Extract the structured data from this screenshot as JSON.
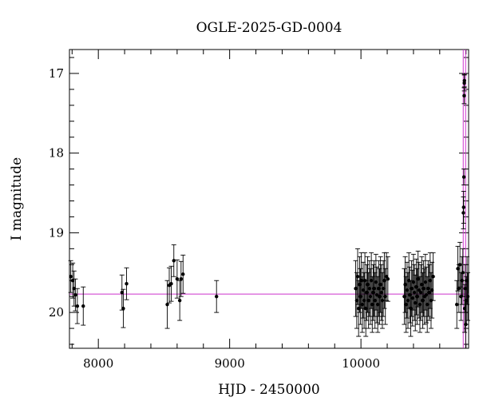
{
  "chart_data": {
    "type": "scatter",
    "title": "OGLE-2025-GD-0004",
    "xlabel": "HJD - 2450000",
    "ylabel": "I magnitude",
    "xlim": [
      7780,
      10820
    ],
    "ylim": [
      16.7,
      20.45
    ],
    "y_inverted": true,
    "x_ticks": [
      8000,
      9000,
      10000
    ],
    "y_ticks": [
      17,
      18,
      19,
      20
    ],
    "baseline_magnitude": 19.77,
    "peak_time": 10788,
    "model_color": "#cc33cc",
    "point_color": "#000000",
    "series": [
      {
        "points": [
          [
            7790,
            19.55,
            0.2
          ],
          [
            7805,
            19.6,
            0.22
          ],
          [
            7815,
            19.7,
            0.22
          ],
          [
            7825,
            19.78,
            0.2
          ],
          [
            7840,
            19.92,
            0.22
          ],
          [
            7885,
            19.92,
            0.24
          ],
          [
            8180,
            19.75,
            0.22
          ],
          [
            8190,
            19.95,
            0.24
          ],
          [
            8215,
            19.64,
            0.2
          ],
          [
            8525,
            19.9,
            0.3
          ],
          [
            8540,
            19.66,
            0.22
          ],
          [
            8555,
            19.64,
            0.22
          ],
          [
            8575,
            19.35,
            0.2
          ],
          [
            8600,
            19.58,
            0.24
          ],
          [
            8620,
            19.85,
            0.25
          ],
          [
            8630,
            19.58,
            0.22
          ],
          [
            8645,
            19.52,
            0.24
          ],
          [
            8900,
            19.8,
            0.2
          ],
          [
            9960,
            19.7,
            0.35
          ],
          [
            9968,
            19.85,
            0.35
          ],
          [
            9975,
            19.55,
            0.35
          ],
          [
            9982,
            19.95,
            0.35
          ],
          [
            9990,
            19.65,
            0.35
          ],
          [
            9996,
            19.8,
            0.35
          ],
          [
            10003,
            19.6,
            0.35
          ],
          [
            10010,
            19.9,
            0.35
          ],
          [
            10017,
            19.72,
            0.35
          ],
          [
            10024,
            19.85,
            0.35
          ],
          [
            10030,
            19.6,
            0.35
          ],
          [
            10037,
            19.95,
            0.35
          ],
          [
            10044,
            19.75,
            0.35
          ],
          [
            10051,
            19.65,
            0.35
          ],
          [
            10058,
            19.85,
            0.35
          ],
          [
            10065,
            19.7,
            0.35
          ],
          [
            10072,
            19.8,
            0.35
          ],
          [
            10079,
            19.6,
            0.35
          ],
          [
            10086,
            19.9,
            0.35
          ],
          [
            10093,
            19.75,
            0.35
          ],
          [
            10100,
            19.7,
            0.35
          ],
          [
            10107,
            19.85,
            0.35
          ],
          [
            10114,
            19.62,
            0.35
          ],
          [
            10121,
            19.78,
            0.35
          ],
          [
            10128,
            19.9,
            0.35
          ],
          [
            10135,
            19.7,
            0.35
          ],
          [
            10142,
            19.8,
            0.35
          ],
          [
            10149,
            19.65,
            0.35
          ],
          [
            10156,
            19.75,
            0.35
          ],
          [
            10163,
            19.85,
            0.35
          ],
          [
            10170,
            19.7,
            0.35
          ],
          [
            10178,
            19.6,
            0.35
          ],
          [
            10186,
            19.8,
            0.35
          ],
          [
            10194,
            19.55,
            0.3
          ],
          [
            10205,
            19.58,
            0.28
          ],
          [
            10330,
            19.8,
            0.35
          ],
          [
            10337,
            19.65,
            0.35
          ],
          [
            10344,
            19.9,
            0.35
          ],
          [
            10351,
            19.72,
            0.35
          ],
          [
            10358,
            19.85,
            0.35
          ],
          [
            10365,
            19.6,
            0.35
          ],
          [
            10372,
            19.78,
            0.35
          ],
          [
            10379,
            19.95,
            0.35
          ],
          [
            10386,
            19.7,
            0.35
          ],
          [
            10393,
            19.82,
            0.35
          ],
          [
            10400,
            19.62,
            0.35
          ],
          [
            10407,
            19.75,
            0.35
          ],
          [
            10414,
            19.88,
            0.35
          ],
          [
            10421,
            19.68,
            0.35
          ],
          [
            10428,
            19.8,
            0.35
          ],
          [
            10435,
            19.58,
            0.35
          ],
          [
            10442,
            19.72,
            0.35
          ],
          [
            10449,
            19.9,
            0.35
          ],
          [
            10456,
            19.75,
            0.35
          ],
          [
            10463,
            19.65,
            0.35
          ],
          [
            10470,
            19.85,
            0.35
          ],
          [
            10477,
            19.7,
            0.35
          ],
          [
            10484,
            19.8,
            0.35
          ],
          [
            10491,
            19.62,
            0.35
          ],
          [
            10498,
            19.78,
            0.35
          ],
          [
            10505,
            19.9,
            0.35
          ],
          [
            10512,
            19.7,
            0.35
          ],
          [
            10520,
            19.75,
            0.35
          ],
          [
            10527,
            19.6,
            0.35
          ],
          [
            10534,
            19.85,
            0.35
          ],
          [
            10541,
            19.72,
            0.35
          ],
          [
            10550,
            19.55,
            0.3
          ],
          [
            10730,
            19.9,
            0.3
          ],
          [
            10738,
            19.45,
            0.28
          ],
          [
            10746,
            19.7,
            0.3
          ],
          [
            10754,
            19.4,
            0.28
          ],
          [
            10762,
            19.8,
            0.3
          ],
          [
            10770,
            19.6,
            0.3
          ],
          [
            10776,
            19.5,
            0.3
          ],
          [
            10780,
            18.75,
            0.2
          ],
          [
            10782,
            18.68,
            0.2
          ],
          [
            10784,
            18.3,
            0.1
          ],
          [
            10786,
            17.28,
            0.1
          ],
          [
            10787,
            17.12,
            0.1
          ],
          [
            10788,
            17.09,
            0.08
          ],
          [
            10790,
            19.95,
            0.3
          ],
          [
            10794,
            19.7,
            0.3
          ],
          [
            10798,
            20.15,
            0.3
          ],
          [
            10803,
            19.85,
            0.3
          ],
          [
            10808,
            19.6,
            0.3
          ],
          [
            10814,
            19.8,
            0.3
          ]
        ]
      }
    ]
  }
}
